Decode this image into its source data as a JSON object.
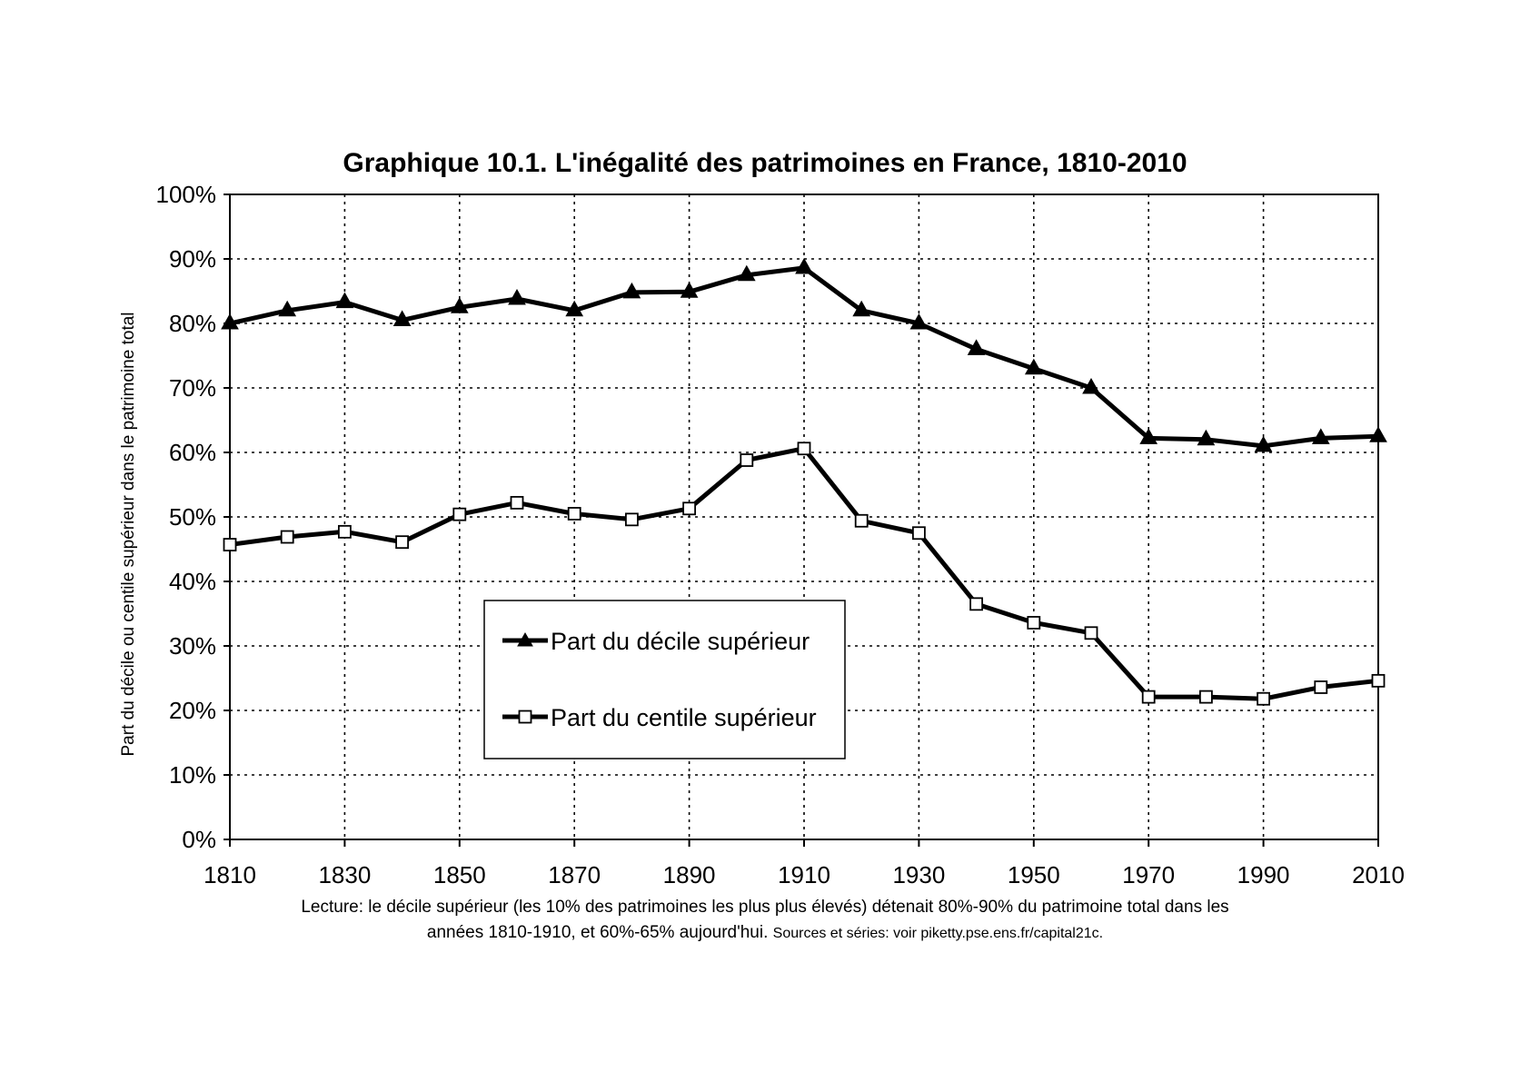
{
  "chart_data": {
    "type": "line",
    "title": "Graphique 10.1. L'inégalité des patrimoines en France, 1810-2010",
    "xlabel": "",
    "ylabel": "Part du décile ou centile supérieur dans le patrimoine total",
    "x": [
      1810,
      1820,
      1830,
      1840,
      1850,
      1860,
      1870,
      1880,
      1890,
      1900,
      1910,
      1920,
      1930,
      1940,
      1950,
      1960,
      1970,
      1980,
      1990,
      2000,
      2010
    ],
    "x_ticks": [
      "1810",
      "1830",
      "1850",
      "1870",
      "1890",
      "1910",
      "1930",
      "1950",
      "1970",
      "1990",
      "2010"
    ],
    "xlim": [
      1810,
      2010
    ],
    "y_ticks": [
      "0%",
      "10%",
      "20%",
      "30%",
      "40%",
      "50%",
      "60%",
      "70%",
      "80%",
      "90%",
      "100%"
    ],
    "ylim": [
      0,
      1
    ],
    "grid": true,
    "legend_position": "center-left",
    "series": [
      {
        "name": "Part du décile supérieur",
        "marker": "filled-triangle",
        "color": "#000000",
        "values": [
          0.8,
          0.82,
          0.833,
          0.805,
          0.825,
          0.838,
          0.82,
          0.848,
          0.849,
          0.875,
          0.886,
          0.82,
          0.8,
          0.76,
          0.73,
          0.7,
          0.622,
          0.62,
          0.61,
          0.622,
          0.625
        ]
      },
      {
        "name": "Part du centile supérieur",
        "marker": "open-square",
        "color": "#000000",
        "values": [
          0.457,
          0.469,
          0.477,
          0.461,
          0.504,
          0.522,
          0.505,
          0.496,
          0.513,
          0.588,
          0.606,
          0.494,
          0.475,
          0.365,
          0.336,
          0.32,
          0.221,
          0.221,
          0.218,
          0.236,
          0.246
        ]
      }
    ]
  },
  "caption": {
    "line1": "Lecture: le décile supérieur (les 10% des patrimoines les plus plus élevés) détenait 80%-90% du patrimoine total dans les",
    "line2": "années 1810-1910, et 60%-65% aujourd'hui.",
    "sources": "Sources et séries: voir piketty.pse.ens.fr/capital21c."
  }
}
